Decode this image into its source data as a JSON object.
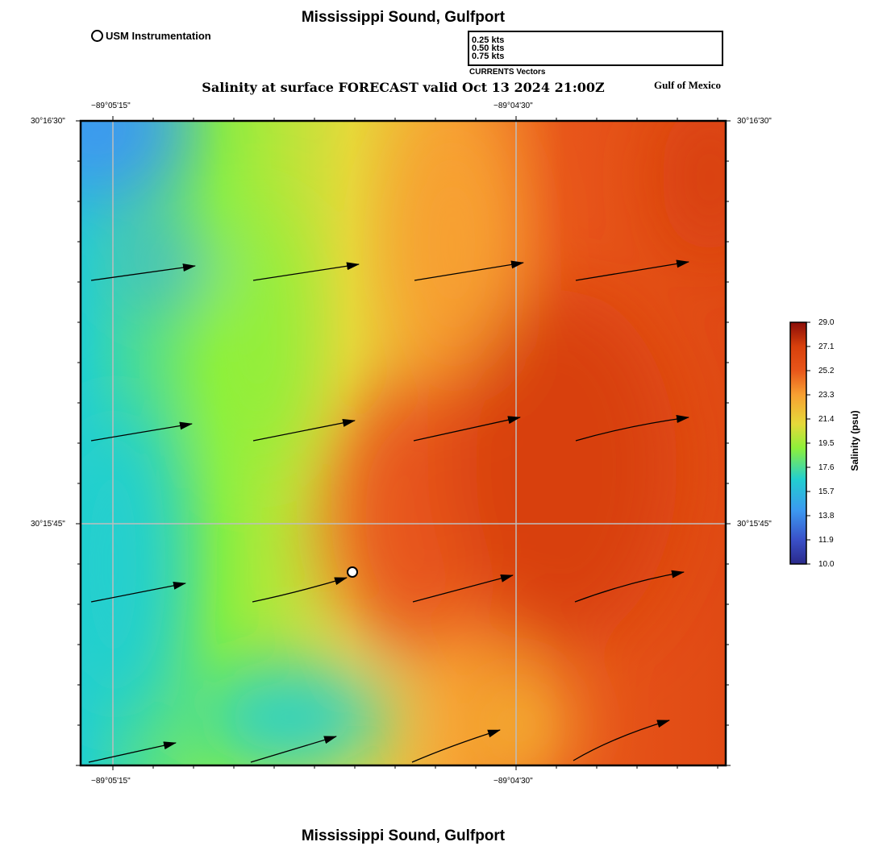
{
  "header": {
    "title": "Mississippi Sound, Gulfport",
    "subtitle": "Salinity at surface FORECAST valid Oct 13 2024 21:00Z",
    "region_label": "Gulf of Mexico"
  },
  "footer": {
    "title": "Mississippi Sound, Gulfport"
  },
  "station_legend": {
    "label": "USM Instrumentation",
    "icon": "open-circle-icon"
  },
  "vector_legend": {
    "caption": "CURRENTS Vectors",
    "entries": [
      {
        "label": "0.25 kts",
        "speed_kts": 0.25
      },
      {
        "label": "0.50 kts",
        "speed_kts": 0.5
      },
      {
        "label": "0.75 kts",
        "speed_kts": 0.75
      }
    ]
  },
  "map": {
    "lon_ticks_top": [
      "−89°05'15\"",
      "−89°04'30\""
    ],
    "lon_ticks_bottom": [
      "−89°05'15\"",
      "−89°04'30\""
    ],
    "lat_ticks_left": [
      "30°16'30\"",
      "30°15'45\""
    ],
    "lat_ticks_right": [
      "30°16'30\"",
      "30°15'45\""
    ],
    "colors": {
      "low": "#2a2a8a",
      "blue": "#3c98f0",
      "cyan": "#22cfd0",
      "green": "#8ef03a",
      "yellow": "#e6d93a",
      "orange": "#f7a032",
      "red_orange": "#e8561a",
      "deep_red": "#d8400c",
      "high": "#8a0d08"
    }
  },
  "colorbar": {
    "title": "Salinity (psu)",
    "min": 10.0,
    "max": 29.0,
    "ticks": [
      "29.0",
      "27.1",
      "25.2",
      "23.3",
      "21.4",
      "19.5",
      "17.6",
      "15.7",
      "13.8",
      "11.9",
      "10.0"
    ]
  }
}
